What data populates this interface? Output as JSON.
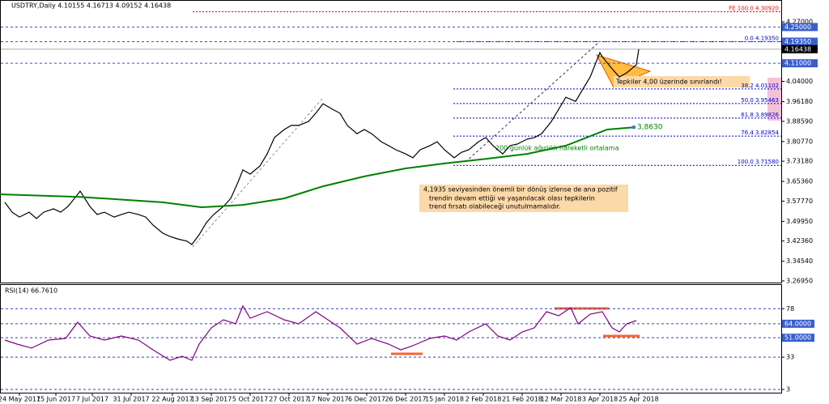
{
  "chart_data": [
    {
      "type": "line",
      "title": "USDTRY,Daily 4.10155 4.16713 4.09152 4.16438",
      "x": [
        2,
        5,
        8,
        12,
        15,
        18,
        22,
        25,
        28,
        32,
        33,
        37,
        40,
        43,
        47,
        50,
        53,
        57,
        60,
        63,
        67,
        70,
        73,
        77,
        79,
        82,
        85,
        88,
        92,
        95,
        98,
        100,
        103,
        107,
        110,
        113,
        117,
        120,
        123,
        127,
        130,
        133,
        137,
        140,
        143,
        147,
        150,
        153,
        157,
        160,
        163,
        167,
        170,
        173,
        177,
        180,
        183,
        187,
        190,
        193,
        197,
        200,
        203,
        207,
        210,
        213,
        217,
        220,
        223,
        227,
        230,
        233,
        237,
        240,
        243,
        247,
        248,
        252,
        255,
        258,
        262,
        263
      ],
      "xlim": [
        0,
        322
      ],
      "ylim": [
        3.26,
        4.3544
      ],
      "series": [
        {
          "color": "#000000",
          "values": [
            3.573,
            3.535,
            3.516,
            3.535,
            3.51,
            3.535,
            3.548,
            3.535,
            3.557,
            3.604,
            3.616,
            3.557,
            3.526,
            3.535,
            3.516,
            3.526,
            3.535,
            3.526,
            3.516,
            3.485,
            3.454,
            3.441,
            3.432,
            3.423,
            3.41,
            3.448,
            3.495,
            3.526,
            3.557,
            3.588,
            3.651,
            3.698,
            3.682,
            3.713,
            3.76,
            3.823,
            3.854,
            3.87,
            3.87,
            3.885,
            3.917,
            3.954,
            3.932,
            3.917,
            3.87,
            3.838,
            3.854,
            3.838,
            3.807,
            3.792,
            3.776,
            3.76,
            3.745,
            3.776,
            3.792,
            3.807,
            3.776,
            3.745,
            3.766,
            3.776,
            3.807,
            3.823,
            3.792,
            3.76,
            3.792,
            3.798,
            3.817,
            3.823,
            3.838,
            3.885,
            3.932,
            3.979,
            3.963,
            4.01,
            4.057,
            4.151,
            4.135,
            4.089,
            4.057,
            4.073,
            4.104,
            4.164
          ]
        },
        {
          "color": "#008000",
          "x": [
            0,
            33,
            67,
            83,
            100,
            117,
            133,
            150,
            167,
            183,
            200,
            217,
            233,
            250,
            261
          ],
          "values": [
            3.604,
            3.594,
            3.573,
            3.554,
            3.563,
            3.588,
            3.635,
            3.673,
            3.704,
            3.723,
            3.741,
            3.76,
            3.792,
            3.854,
            3.863
          ]
        }
      ],
      "yticks": [
        {
          "value": 4.27,
          "label": "4.27000"
        },
        {
          "value": 4.04,
          "label": "4.04000"
        },
        {
          "value": 3.9618,
          "label": "3.96180"
        },
        {
          "value": 3.8859,
          "label": "3.88590"
        },
        {
          "value": 3.8077,
          "label": "3.80770"
        },
        {
          "value": 3.7318,
          "label": "3.73180"
        },
        {
          "value": 3.6536,
          "label": "3.65360"
        },
        {
          "value": 3.5777,
          "label": "3.57770"
        },
        {
          "value": 3.4995,
          "label": "3.49950"
        },
        {
          "value": 3.4236,
          "label": "3.42360"
        },
        {
          "value": 3.3454,
          "label": "3.34540"
        },
        {
          "value": 3.2695,
          "label": "3.26950"
        }
      ],
      "levels": [
        {
          "value": 4.25,
          "label": "4.25000"
        },
        {
          "value": 4.1935,
          "label": "4.19350"
        },
        {
          "value": 4.11,
          "label": "4.11000"
        }
      ],
      "last": 4.16438,
      "fib": [
        {
          "label": "FE 100.0 4.30920",
          "value": 4.3092,
          "color": "#ff0000"
        },
        {
          "label": "0.0 4.19350",
          "value": 4.1935,
          "color": "#0000cc"
        },
        {
          "label": "38.2 4.01102",
          "value": 4.01102,
          "color": "#0000cc"
        },
        {
          "label": "50.0 3.95463",
          "value": 3.95463,
          "color": "#0000cc"
        },
        {
          "label": "61.8 3.89826",
          "value": 3.89826,
          "color": "#0000cc"
        },
        {
          "label": "76.4 3.82854",
          "value": 3.82854,
          "color": "#0000cc"
        },
        {
          "label": "100.0 3.71580",
          "value": 3.7158,
          "color": "#0000cc"
        }
      ],
      "ma_label": "3,8630",
      "ma_note": "200 günlük ağırlıklı hareketli ortalama",
      "callout": "Tepkiler 4,00 üzerinde sınırlandı!",
      "note": [
        "4,1935 seviyesinden önemli bir dönüş izlense de ana pozitif",
        "trendin devam ettiği ve yaşanılacak olası tepkilerin",
        "trend fırsatı olabileceği unutulmamalıdır."
      ]
    },
    {
      "type": "line",
      "title": "RSI(14) 66.7610",
      "xlim": [
        0,
        322
      ],
      "ylim": [
        0,
        100
      ],
      "x": [
        2,
        7,
        13,
        20,
        27,
        32,
        37,
        43,
        50,
        57,
        63,
        70,
        75,
        79,
        82,
        87,
        92,
        97,
        100,
        103,
        110,
        117,
        123,
        130,
        135,
        140,
        147,
        153,
        160,
        165,
        170,
        177,
        183,
        188,
        193,
        200,
        205,
        210,
        215,
        220,
        225,
        230,
        235,
        238,
        243,
        248,
        252,
        255,
        258,
        262
      ],
      "series": [
        {
          "color": "#800080",
          "values": [
            48.9,
            45.1,
            41.4,
            48.9,
            50.4,
            65.4,
            52.6,
            48.9,
            52.6,
            48.9,
            39.8,
            30.1,
            33.8,
            30.1,
            45.1,
            60.2,
            67.7,
            63.9,
            80.5,
            69.2,
            75.2,
            67.7,
            63.9,
            75.2,
            67.7,
            60.2,
            45.1,
            50.4,
            45.1,
            39.8,
            43.6,
            50.4,
            52.6,
            48.9,
            56.4,
            63.9,
            52.6,
            48.9,
            56.4,
            60.2,
            75.2,
            71.4,
            78.9,
            63.9,
            72.9,
            75.2,
            60.2,
            56.4,
            63.9,
            66.9
          ]
        }
      ],
      "yticks": [
        78,
        {
          "value": 64,
          "label": "64.0000"
        },
        {
          "value": 51,
          "label": "51.0000"
        },
        33,
        3
      ],
      "xticks": [
        {
          "value": 8,
          "label": "24 May 2017"
        },
        {
          "value": 23,
          "label": "15 Jun 2017"
        },
        {
          "value": 38,
          "label": "7 Jul 2017"
        },
        {
          "value": 54,
          "label": "31 Jul 2017"
        },
        {
          "value": 71,
          "label": "22 Aug 2017"
        },
        {
          "value": 87,
          "label": "13 Sep 2017"
        },
        {
          "value": 103,
          "label": "5 Oct 2017"
        },
        {
          "value": 119,
          "label": "27 Oct 2017"
        },
        {
          "value": 135,
          "label": "17 Nov 2017"
        },
        {
          "value": 151,
          "label": "6 Dec 2017"
        },
        {
          "value": 167,
          "label": "26 Dec 2017"
        },
        {
          "value": 183,
          "label": "15 Jan 2018"
        },
        {
          "value": 199,
          "label": "2 Feb 2018"
        },
        {
          "value": 215,
          "label": "21 Feb 2018"
        },
        {
          "value": 231,
          "label": "12 Mar 2018"
        },
        {
          "value": 247,
          "label": "3 Apr 2018"
        },
        {
          "value": 263,
          "label": "25 Apr 2018"
        }
      ]
    }
  ]
}
